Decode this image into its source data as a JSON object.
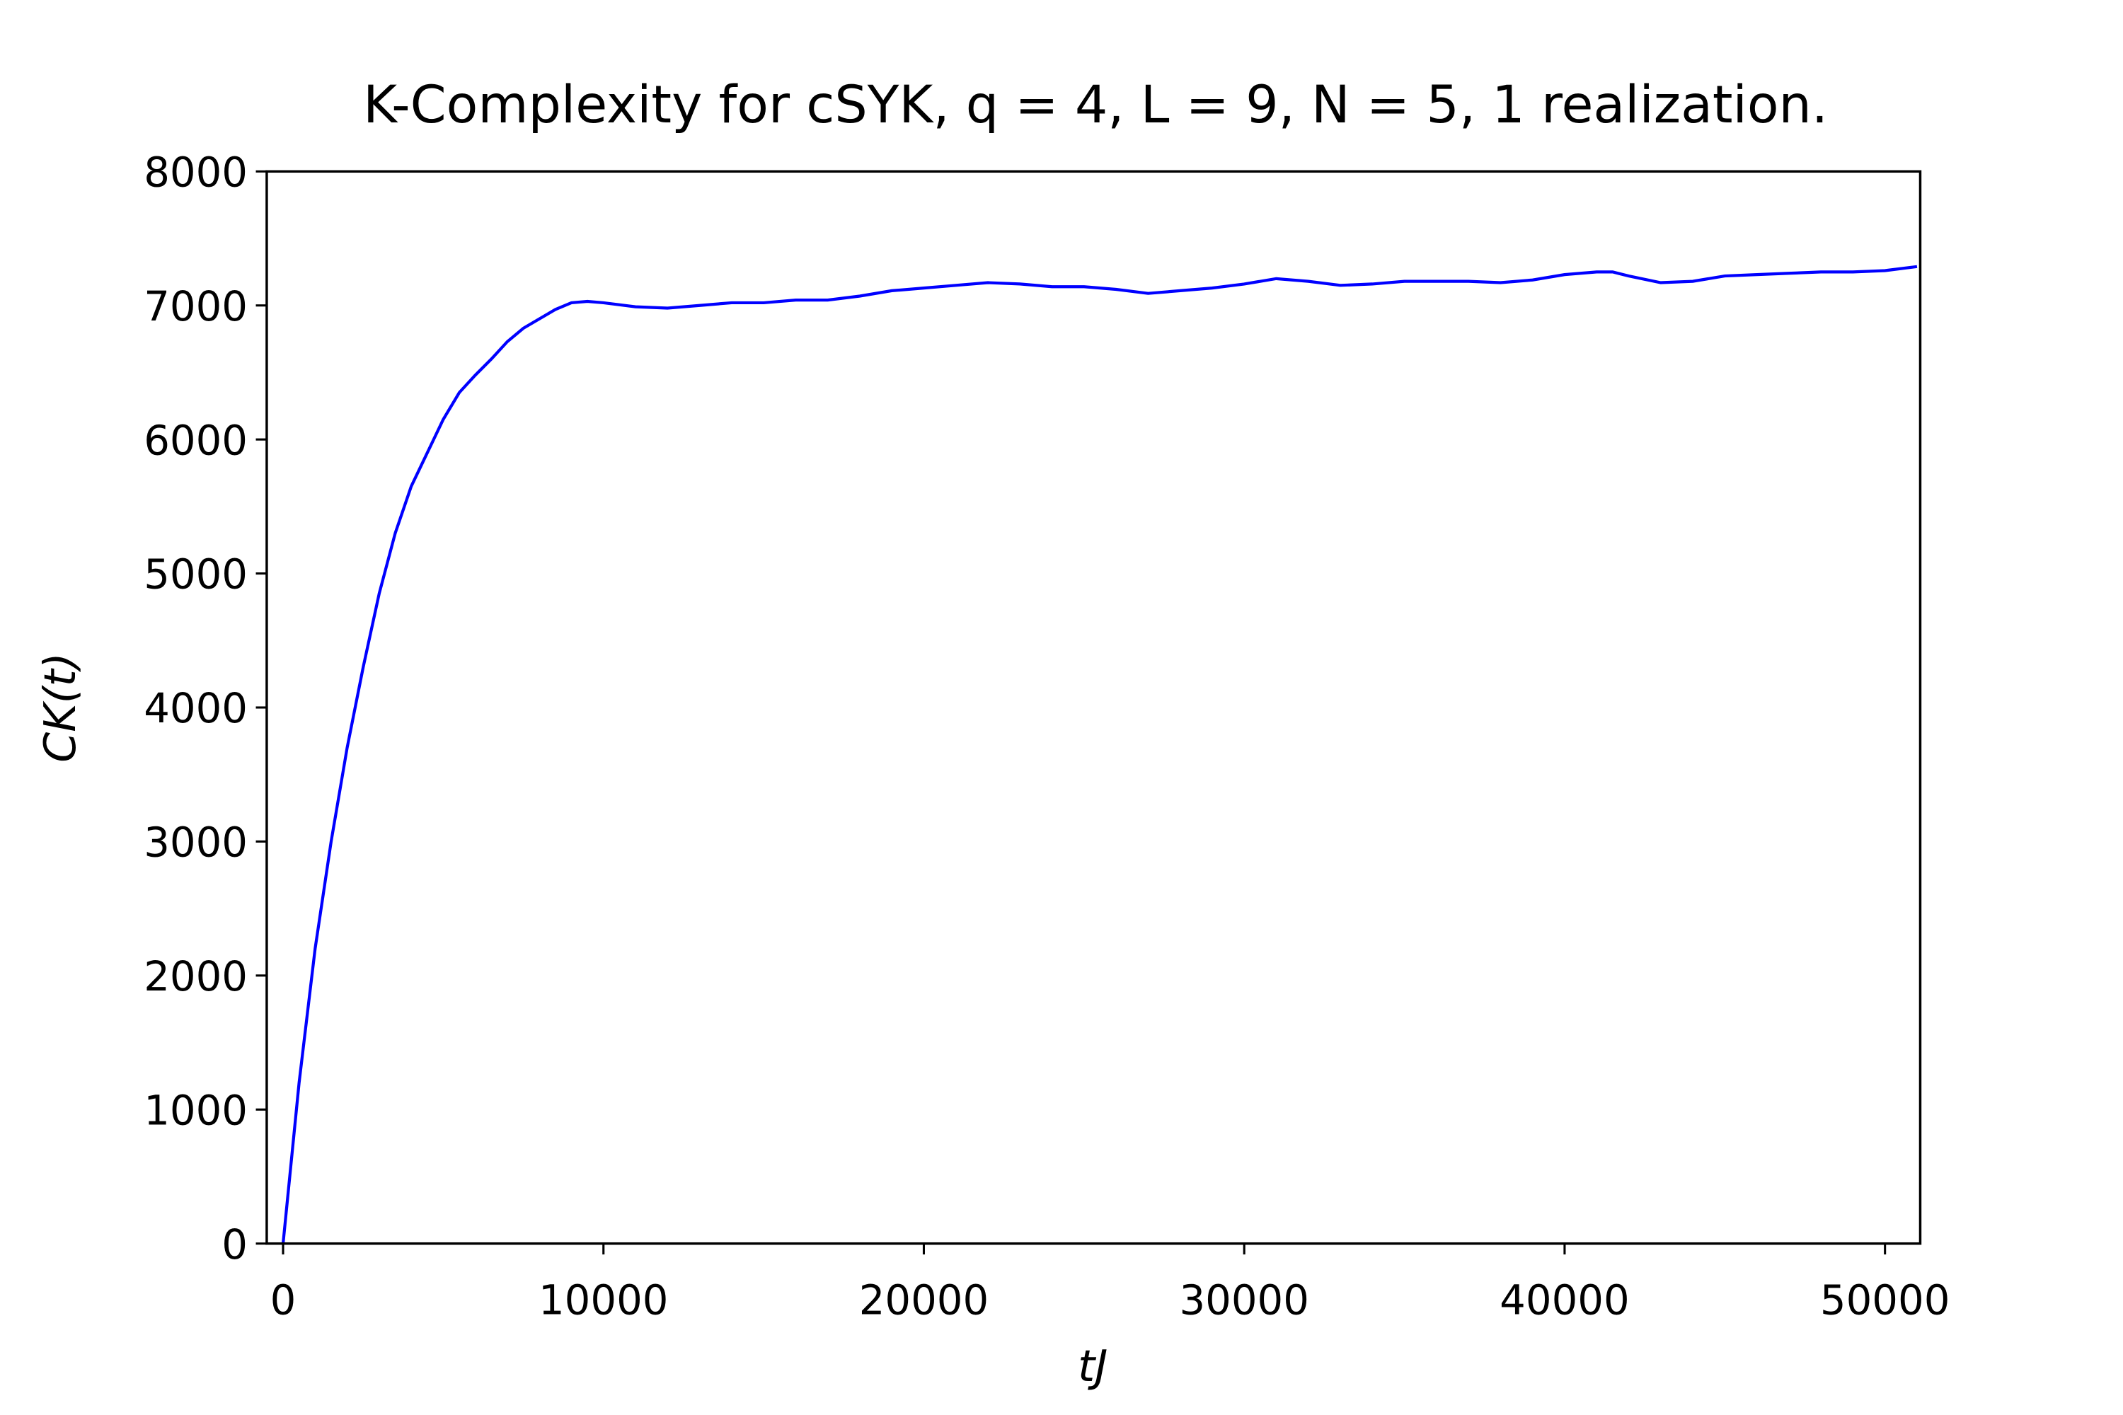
{
  "chart_data": {
    "type": "line",
    "title": "K-Complexity for cSYK, q = 4, L = 9, N = 5, 1 realization.",
    "xlabel": "tJ",
    "ylabel": "CK(t)",
    "x": [
      0,
      500,
      1000,
      1500,
      2000,
      2500,
      3000,
      3500,
      4000,
      4500,
      5000,
      5500,
      6000,
      6500,
      7000,
      7500,
      8000,
      8500,
      9000,
      9500,
      10000,
      11000,
      12000,
      13000,
      14000,
      15000,
      16000,
      17000,
      18000,
      19000,
      20000,
      21000,
      22000,
      23000,
      24000,
      25000,
      26000,
      27000,
      28000,
      29000,
      30000,
      31000,
      32000,
      33000,
      34000,
      35000,
      36000,
      37000,
      38000,
      39000,
      40000,
      41000,
      41500,
      42000,
      43000,
      44000,
      45000,
      46000,
      47000,
      48000,
      49000,
      50000,
      51000
    ],
    "series": [
      {
        "name": "C_K",
        "color": "#0000ff",
        "values": [
          0,
          1200,
          2200,
          3000,
          3700,
          4300,
          4850,
          5300,
          5650,
          5900,
          6150,
          6350,
          6480,
          6600,
          6730,
          6830,
          6900,
          6970,
          7020,
          7030,
          7020,
          6990,
          6980,
          7000,
          7020,
          7020,
          7040,
          7040,
          7070,
          7110,
          7130,
          7150,
          7170,
          7160,
          7140,
          7140,
          7120,
          7090,
          7110,
          7130,
          7160,
          7200,
          7180,
          7150,
          7160,
          7180,
          7180,
          7180,
          7170,
          7190,
          7230,
          7250,
          7250,
          7220,
          7170,
          7180,
          7220,
          7230,
          7240,
          7250,
          7250,
          7260,
          7290
        ]
      }
    ],
    "xlim": [
      -510,
      51100
    ],
    "ylim": [
      0,
      8000
    ],
    "xticks": [
      0,
      10000,
      20000,
      30000,
      40000,
      50000
    ],
    "yticks": [
      0,
      1000,
      2000,
      3000,
      4000,
      5000,
      6000,
      7000,
      8000
    ],
    "grid": false
  }
}
